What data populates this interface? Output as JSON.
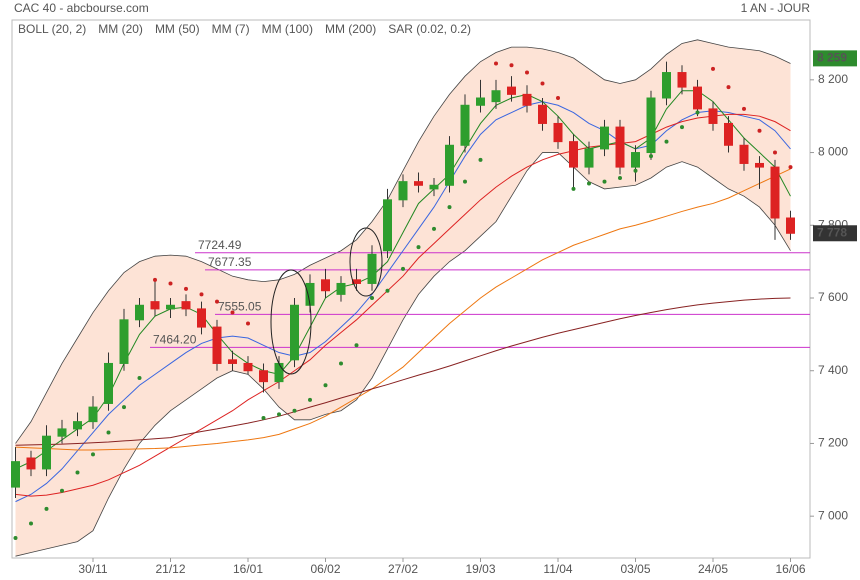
{
  "chart_data": {
    "type": "candlestick",
    "title": "CAC 40 - abcbourse.com",
    "period": "1 AN - JOUR",
    "categories": [
      null,
      null,
      null,
      null,
      null,
      "30/11",
      null,
      null,
      null,
      null,
      "21/12",
      null,
      null,
      null,
      null,
      "16/01",
      null,
      null,
      null,
      null,
      "06/02",
      null,
      null,
      null,
      null,
      "27/02",
      null,
      null,
      null,
      null,
      "19/03",
      null,
      null,
      null,
      null,
      "11/04",
      null,
      null,
      null,
      null,
      "03/05",
      null,
      null,
      null,
      null,
      "24/05",
      null,
      null,
      null,
      null,
      "16/06"
    ],
    "open": [
      7080,
      7160,
      7130,
      7220,
      7240,
      7260,
      7310,
      7420,
      7540,
      7590,
      7570,
      7590,
      7570,
      7520,
      7430,
      7420,
      7400,
      7370,
      7430,
      7580,
      7650,
      7610,
      7650,
      7640,
      7730,
      7870,
      7920,
      7900,
      7910,
      8020,
      8130,
      8140,
      8180,
      8160,
      8130,
      8080,
      8030,
      7960,
      8010,
      8070,
      7960,
      8000,
      8150,
      8220,
      8180,
      8120,
      8080,
      8020,
      7970,
      7960,
      7820
    ],
    "high": [
      7190,
      7180,
      7250,
      7265,
      7285,
      7330,
      7450,
      7570,
      7600,
      7650,
      7600,
      7610,
      7590,
      7540,
      7455,
      7440,
      7420,
      7440,
      7600,
      7665,
      7680,
      7660,
      7680,
      7745,
      7900,
      7940,
      7945,
      7930,
      8045,
      8160,
      8200,
      8200,
      8210,
      8185,
      8150,
      8100,
      8050,
      8030,
      8090,
      8090,
      8020,
      8170,
      8250,
      8240,
      8200,
      8140,
      8100,
      8040,
      7990,
      7980,
      7840
    ],
    "low": [
      7050,
      7110,
      7110,
      7200,
      7220,
      7240,
      7290,
      7400,
      7520,
      7550,
      7545,
      7550,
      7500,
      7400,
      7400,
      7390,
      7340,
      7350,
      7410,
      7560,
      7600,
      7590,
      7620,
      7620,
      7710,
      7850,
      7890,
      7880,
      7890,
      8000,
      8110,
      8120,
      8140,
      8110,
      8060,
      8010,
      7900,
      7940,
      7990,
      7940,
      7920,
      7980,
      8130,
      8160,
      8100,
      8060,
      8000,
      7950,
      7900,
      7760,
      7760
    ],
    "close": [
      7150,
      7130,
      7220,
      7240,
      7260,
      7300,
      7420,
      7540,
      7580,
      7570,
      7580,
      7570,
      7520,
      7420,
      7420,
      7400,
      7370,
      7420,
      7580,
      7640,
      7620,
      7640,
      7640,
      7720,
      7870,
      7920,
      7910,
      7910,
      8020,
      8130,
      8150,
      8170,
      8160,
      8130,
      8080,
      8030,
      7960,
      8010,
      8070,
      7960,
      8000,
      8150,
      8220,
      8180,
      8120,
      8080,
      8020,
      7970,
      7960,
      7820,
      7778
    ],
    "up_color": "#2e9e2e",
    "down_color": "#dd2222",
    "bollinger": {
      "name": "BOLL (20, 2)",
      "color": "#444444",
      "fill": "#fde3d6",
      "upper": [
        7200,
        7260,
        7340,
        7420,
        7490,
        7560,
        7620,
        7670,
        7700,
        7715,
        7718,
        7715,
        7700,
        7680,
        7660,
        7650,
        7645,
        7650,
        7665,
        7690,
        7710,
        7730,
        7760,
        7810,
        7870,
        7950,
        8030,
        8100,
        8160,
        8210,
        8250,
        8275,
        8290,
        8290,
        8285,
        8275,
        8260,
        8230,
        8200,
        8190,
        8200,
        8230,
        8270,
        8300,
        8310,
        8300,
        8290,
        8285,
        8280,
        8265,
        8245
      ],
      "lower": [
        6890,
        6900,
        6910,
        6920,
        6930,
        6960,
        7050,
        7130,
        7200,
        7250,
        7290,
        7320,
        7350,
        7380,
        7400,
        7390,
        7350,
        7300,
        7265,
        7265,
        7280,
        7290,
        7320,
        7380,
        7460,
        7540,
        7610,
        7660,
        7700,
        7730,
        7770,
        7810,
        7880,
        7950,
        8000,
        8000,
        7960,
        7920,
        7900,
        7905,
        7910,
        7930,
        7960,
        7975,
        7960,
        7930,
        7900,
        7880,
        7850,
        7800,
        7730
      ]
    },
    "series": [
      {
        "name": "MM (20)",
        "color": "#3a66e0",
        "values": [
          7040,
          7060,
          7090,
          7130,
          7180,
          7230,
          7280,
          7320,
          7360,
          7390,
          7420,
          7450,
          7475,
          7490,
          7495,
          7490,
          7470,
          7450,
          7440,
          7450,
          7480,
          7520,
          7560,
          7610,
          7670,
          7730,
          7790,
          7850,
          7920,
          7990,
          8050,
          8090,
          8110,
          8130,
          8140,
          8130,
          8110,
          8080,
          8060,
          8030,
          8010,
          8020,
          8060,
          8090,
          8110,
          8115,
          8110,
          8100,
          8090,
          8060,
          8010
        ]
      },
      {
        "name": "MM (50)",
        "color": "#dd2222",
        "values": [
          7060,
          7055,
          7058,
          7065,
          7075,
          7085,
          7100,
          7120,
          7140,
          7165,
          7190,
          7215,
          7240,
          7265,
          7290,
          7320,
          7345,
          7370,
          7400,
          7430,
          7470,
          7505,
          7540,
          7580,
          7620,
          7660,
          7710,
          7750,
          7790,
          7830,
          7870,
          7905,
          7935,
          7960,
          7980,
          7995,
          8005,
          8015,
          8020,
          8025,
          8030,
          8050,
          8070,
          8085,
          8095,
          8100,
          8105,
          8105,
          8100,
          8085,
          8060
        ]
      },
      {
        "name": "MM (7)",
        "color": "#228822",
        "values": [
          7130,
          7150,
          7180,
          7210,
          7240,
          7270,
          7330,
          7420,
          7500,
          7550,
          7570,
          7575,
          7555,
          7500,
          7450,
          7420,
          7400,
          7390,
          7440,
          7520,
          7600,
          7630,
          7640,
          7660,
          7700,
          7780,
          7860,
          7900,
          7940,
          8010,
          8080,
          8130,
          8150,
          8160,
          8140,
          8100,
          8050,
          8010,
          8020,
          8030,
          8010,
          8040,
          8120,
          8170,
          8170,
          8140,
          8090,
          8040,
          8000,
          7960,
          7880
        ]
      },
      {
        "name": "MM (100)",
        "color": "#ee7711",
        "values": [
          7190,
          7188,
          7186,
          7184,
          7182,
          7182,
          7183,
          7184,
          7185,
          7186,
          7188,
          7192,
          7196,
          7200,
          7205,
          7210,
          7216,
          7225,
          7240,
          7255,
          7275,
          7300,
          7325,
          7350,
          7380,
          7410,
          7450,
          7490,
          7530,
          7565,
          7600,
          7630,
          7655,
          7680,
          7705,
          7725,
          7745,
          7760,
          7775,
          7790,
          7800,
          7812,
          7825,
          7838,
          7850,
          7860,
          7875,
          7895,
          7915,
          7935,
          7955
        ]
      },
      {
        "name": "MM (200)",
        "color": "#882222",
        "values": [
          7195,
          7196,
          7197,
          7198,
          7200,
          7202,
          7204,
          7207,
          7210,
          7213,
          7216,
          7225,
          7233,
          7240,
          7248,
          7256,
          7265,
          7275,
          7287,
          7300,
          7312,
          7325,
          7337,
          7350,
          7362,
          7375,
          7388,
          7400,
          7413,
          7427,
          7441,
          7455,
          7468,
          7480,
          7492,
          7503,
          7513,
          7523,
          7533,
          7543,
          7552,
          7560,
          7568,
          7575,
          7581,
          7586,
          7590,
          7594,
          7597,
          7599,
          7600
        ]
      }
    ],
    "sar": {
      "name": "SAR (0.02, 0.2)",
      "color": "#cc2222",
      "up_color": "#2e8b2e",
      "values": [
        6940,
        6980,
        7020,
        7070,
        7120,
        7170,
        7230,
        7300,
        7380,
        7650,
        7640,
        7625,
        7610,
        7590,
        7560,
        7530,
        7270,
        7280,
        7290,
        7320,
        7360,
        7420,
        7470,
        7600,
        7620,
        7680,
        7740,
        7790,
        7850,
        7920,
        7980,
        8245,
        8240,
        8220,
        8190,
        8150,
        7900,
        7915,
        7920,
        7930,
        7950,
        7990,
        8030,
        8070,
        8110,
        8230,
        8180,
        8120,
        8060,
        8000,
        7960
      ]
    },
    "levels": [
      {
        "value": 7724.49,
        "color": "#cc33cc"
      },
      {
        "value": 7677.35,
        "color": "#cc33cc"
      },
      {
        "value": 7555.05,
        "color": "#cc33cc"
      },
      {
        "value": 7464.2,
        "label": "7464.20",
        "color": "#cc33cc"
      }
    ],
    "annotations": [
      {
        "value": 8259,
        "label": "8 259",
        "color": "#2e8b2e"
      },
      {
        "value": 7778,
        "label": "7 778",
        "color": "#333333"
      }
    ],
    "ylim": [
      6885,
      8381
    ],
    "yticks": [
      {
        "value": 7000,
        "label": "7 000"
      },
      {
        "value": 7200,
        "label": "7 200"
      },
      {
        "value": 7400,
        "label": "7 400"
      },
      {
        "value": 7600,
        "label": "7 600"
      },
      {
        "value": 7800,
        "label": "7 800"
      },
      {
        "value": 8000,
        "label": "8 000"
      },
      {
        "value": 8200,
        "label": "8 200"
      }
    ]
  }
}
